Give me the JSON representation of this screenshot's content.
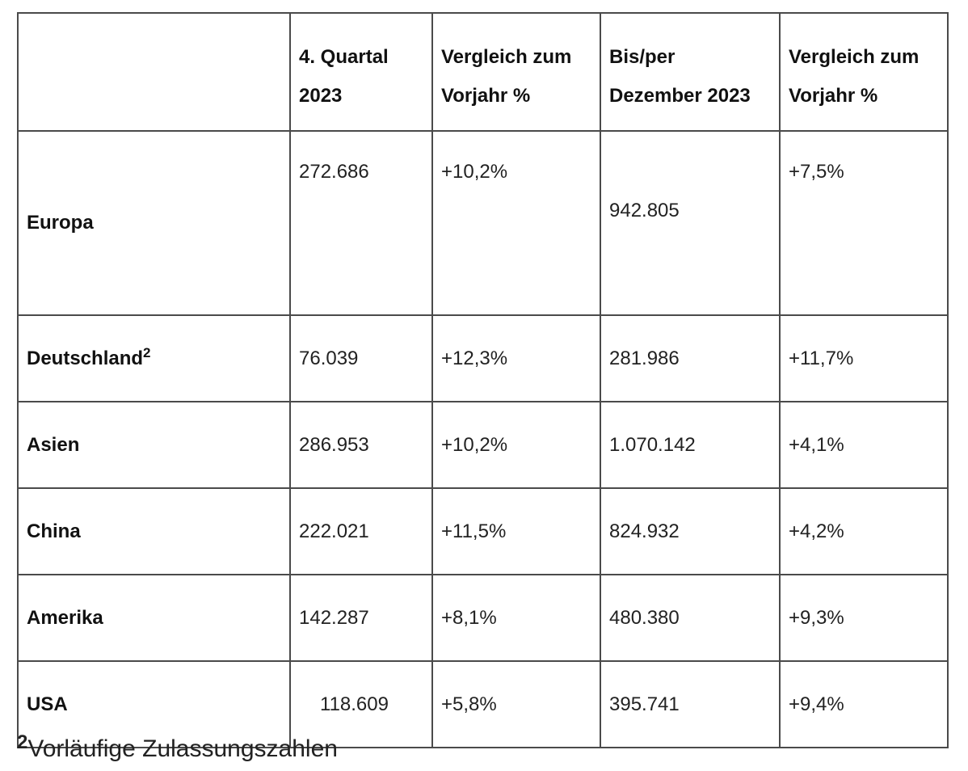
{
  "table": {
    "headers": {
      "col0": "",
      "col1_line1": "4. Quartal",
      "col1_line2": "2023",
      "col2_line1": "Vergleich zum",
      "col2_line2": "Vorjahr %",
      "col3_line1": "Bis/per",
      "col3_line2": "Dezember 2023",
      "col4_line1": "Vergleich zum",
      "col4_line2": "Vorjahr %"
    },
    "rows": [
      {
        "region": "Europa",
        "q4": "272.686",
        "q4_change": "+10,2%",
        "ytd": "942.805",
        "ytd_change": "+7,5%"
      },
      {
        "region": "Deutschland",
        "footnote": "2",
        "q4": "76.039",
        "q4_change": "+12,3%",
        "ytd": "281.986",
        "ytd_change": "+11,7%"
      },
      {
        "region": "Asien",
        "q4": "286.953",
        "q4_change": "+10,2%",
        "ytd": "1.070.142",
        "ytd_change": "+4,1%"
      },
      {
        "region": "China",
        "q4": "222.021",
        "q4_change": "+11,5%",
        "ytd": "824.932",
        "ytd_change": "+4,2%"
      },
      {
        "region": "Amerika",
        "q4": "142.287",
        "q4_change": "+8,1%",
        "ytd": "480.380",
        "ytd_change": "+9,3%"
      },
      {
        "region": "USA",
        "q4": "118.609",
        "q4_change": "+5,8%",
        "ytd": "395.741",
        "ytd_change": "+9,4%"
      }
    ]
  },
  "footnote": {
    "mark": "2",
    "text": "Vorläufige Zulassungszahlen"
  }
}
